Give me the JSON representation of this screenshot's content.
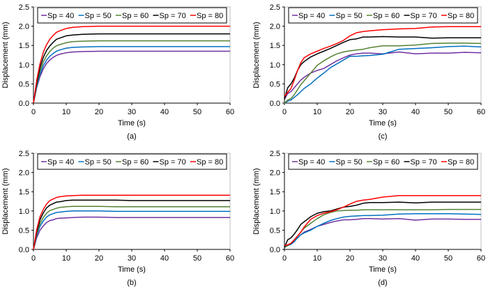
{
  "chart_data": [
    {
      "type": "line",
      "caption": "(a)",
      "xlabel": "Time (s)",
      "ylabel": "Displacement (mm)",
      "xlim": [
        0,
        60
      ],
      "ylim": [
        0,
        2.5
      ],
      "xticks": [
        0,
        10,
        20,
        30,
        40,
        50,
        60
      ],
      "yticks": [
        "0.0",
        "0.5",
        "1.0",
        "1.5",
        "2.0",
        "2.5"
      ],
      "grid": false,
      "legend_placement": "top",
      "x": [
        0,
        1,
        2,
        3,
        4,
        5,
        6,
        7,
        8,
        10,
        12,
        15,
        20,
        25,
        30,
        40,
        50,
        60
      ],
      "series": [
        {
          "name": "Sp = 40",
          "color": "#7030a0",
          "values": [
            0,
            0.41,
            0.69,
            0.89,
            1.03,
            1.12,
            1.19,
            1.24,
            1.27,
            1.31,
            1.33,
            1.34,
            1.35,
            1.35,
            1.35,
            1.35,
            1.35,
            1.35
          ]
        },
        {
          "name": "Sp = 50",
          "color": "#0070c0",
          "values": [
            0,
            0.44,
            0.75,
            0.97,
            1.12,
            1.22,
            1.29,
            1.35,
            1.38,
            1.43,
            1.45,
            1.46,
            1.47,
            1.47,
            1.47,
            1.47,
            1.47,
            1.47
          ]
        },
        {
          "name": "Sp = 60",
          "color": "#548235",
          "values": [
            0,
            0.49,
            0.83,
            1.07,
            1.23,
            1.34,
            1.43,
            1.49,
            1.52,
            1.57,
            1.6,
            1.61,
            1.62,
            1.62,
            1.62,
            1.62,
            1.62,
            1.62
          ]
        },
        {
          "name": "Sp = 70",
          "color": "#000000",
          "values": [
            0,
            0.54,
            0.92,
            1.19,
            1.37,
            1.49,
            1.58,
            1.66,
            1.69,
            1.75,
            1.77,
            1.79,
            1.8,
            1.8,
            1.8,
            1.8,
            1.8,
            1.8
          ]
        },
        {
          "name": "Sp = 80",
          "color": "#ff0000",
          "values": [
            0,
            0.6,
            1.02,
            1.32,
            1.52,
            1.66,
            1.76,
            1.84,
            1.88,
            1.94,
            1.97,
            1.99,
            2.0,
            2.0,
            2.0,
            2.0,
            2.0,
            2.0
          ]
        }
      ]
    },
    {
      "type": "line",
      "caption": "(b)",
      "xlabel": "Time (s)",
      "ylabel": "Displacement (mm)",
      "xlim": [
        0,
        60
      ],
      "ylim": [
        0,
        2.5
      ],
      "xticks": [
        0,
        10,
        20,
        30,
        40,
        50,
        60
      ],
      "yticks": [
        "0.0",
        "0.5",
        "1.0",
        "1.5",
        "2.0",
        "2.5"
      ],
      "grid": false,
      "legend_placement": "top",
      "x": [
        0,
        1,
        2,
        3,
        4,
        5,
        6,
        7,
        8,
        10,
        12,
        15,
        20,
        25,
        30,
        40,
        50,
        60
      ],
      "series": [
        {
          "name": "Sp = 40",
          "color": "#7030a0",
          "values": [
            0,
            0.31,
            0.5,
            0.61,
            0.7,
            0.75,
            0.77,
            0.8,
            0.81,
            0.82,
            0.83,
            0.84,
            0.84,
            0.83,
            0.83,
            0.83,
            0.83,
            0.83
          ]
        },
        {
          "name": "Sp = 50",
          "color": "#0070c0",
          "values": [
            0,
            0.37,
            0.6,
            0.74,
            0.84,
            0.9,
            0.93,
            0.96,
            0.97,
            0.99,
            1.0,
            1.0,
            1.0,
            0.99,
            0.99,
            0.99,
            0.99,
            0.99
          ]
        },
        {
          "name": "Sp = 60",
          "color": "#548235",
          "values": [
            0,
            0.41,
            0.67,
            0.83,
            0.94,
            1.01,
            1.04,
            1.07,
            1.09,
            1.11,
            1.12,
            1.12,
            1.12,
            1.11,
            1.11,
            1.11,
            1.11,
            1.11
          ]
        },
        {
          "name": "Sp = 70",
          "color": "#000000",
          "values": [
            0,
            0.47,
            0.77,
            0.95,
            1.08,
            1.15,
            1.19,
            1.23,
            1.24,
            1.27,
            1.28,
            1.28,
            1.28,
            1.28,
            1.27,
            1.27,
            1.27,
            1.27
          ]
        },
        {
          "name": "Sp = 80",
          "color": "#ff0000",
          "values": [
            0,
            0.52,
            0.85,
            1.04,
            1.18,
            1.27,
            1.31,
            1.35,
            1.37,
            1.39,
            1.4,
            1.41,
            1.41,
            1.41,
            1.41,
            1.41,
            1.41,
            1.41
          ]
        }
      ]
    },
    {
      "type": "line",
      "caption": "(c)",
      "xlabel": "Time (s)",
      "ylabel": "Displacement (mm)",
      "xlim": [
        0,
        60
      ],
      "ylim": [
        0,
        2.5
      ],
      "xticks": [
        0,
        10,
        20,
        30,
        40,
        50,
        60
      ],
      "yticks": [
        "0.0",
        "0.5",
        "1.0",
        "1.5",
        "2.0",
        "2.5"
      ],
      "grid": false,
      "legend_placement": "top",
      "x": [
        0,
        1,
        2,
        3,
        4,
        5,
        6,
        8,
        10,
        12,
        14,
        16,
        18,
        20,
        22,
        24,
        26,
        30,
        35,
        40,
        45,
        50,
        55,
        60
      ],
      "series": [
        {
          "name": "Sp = 40",
          "color": "#7030a0",
          "values": [
            0.1,
            0.25,
            0.3,
            0.4,
            0.5,
            0.6,
            0.67,
            0.78,
            0.85,
            0.9,
            1.0,
            1.1,
            1.18,
            1.25,
            1.28,
            1.3,
            1.3,
            1.28,
            1.33,
            1.28,
            1.3,
            1.3,
            1.32,
            1.31
          ]
        },
        {
          "name": "Sp = 50",
          "color": "#0070c0",
          "values": [
            0,
            0.05,
            0.08,
            0.15,
            0.22,
            0.3,
            0.38,
            0.5,
            0.65,
            0.78,
            0.92,
            1.02,
            1.12,
            1.22,
            1.22,
            1.23,
            1.24,
            1.27,
            1.4,
            1.42,
            1.44,
            1.47,
            1.48,
            1.46
          ]
        },
        {
          "name": "Sp = 60",
          "color": "#548235",
          "values": [
            0,
            0.08,
            0.12,
            0.22,
            0.35,
            0.48,
            0.58,
            0.78,
            0.98,
            1.1,
            1.2,
            1.28,
            1.33,
            1.36,
            1.38,
            1.4,
            1.44,
            1.49,
            1.49,
            1.51,
            1.55,
            1.56,
            1.56,
            1.55
          ]
        },
        {
          "name": "Sp = 70",
          "color": "#000000",
          "values": [
            0.1,
            0.4,
            0.5,
            0.65,
            0.85,
            1.0,
            1.08,
            1.2,
            1.28,
            1.35,
            1.42,
            1.5,
            1.58,
            1.65,
            1.67,
            1.72,
            1.72,
            1.73,
            1.72,
            1.72,
            1.69,
            1.7,
            1.7,
            1.7
          ]
        },
        {
          "name": "Sp = 80",
          "color": "#ff0000",
          "values": [
            0.18,
            0.28,
            0.38,
            0.6,
            0.85,
            1.05,
            1.18,
            1.28,
            1.35,
            1.42,
            1.48,
            1.55,
            1.63,
            1.75,
            1.83,
            1.86,
            1.88,
            1.91,
            1.93,
            1.94,
            1.98,
            1.99,
            1.99,
            1.99
          ]
        }
      ]
    },
    {
      "type": "line",
      "caption": "(d)",
      "xlabel": "Time (s)",
      "ylabel": "Displacement (mm)",
      "xlim": [
        0,
        60
      ],
      "ylim": [
        0,
        2.5
      ],
      "xticks": [
        0,
        10,
        20,
        30,
        40,
        50,
        60
      ],
      "yticks": [
        "0.0",
        "0.5",
        "1.0",
        "1.5",
        "2.0",
        "2.5"
      ],
      "grid": false,
      "legend_placement": "top",
      "x": [
        0,
        1,
        2,
        3,
        4,
        5,
        6,
        8,
        10,
        12,
        14,
        16,
        18,
        20,
        22,
        24,
        26,
        30,
        35,
        40,
        45,
        50,
        55,
        60
      ],
      "series": [
        {
          "name": "Sp = 40",
          "color": "#7030a0",
          "values": [
            0.05,
            0.1,
            0.15,
            0.22,
            0.3,
            0.38,
            0.45,
            0.52,
            0.6,
            0.65,
            0.7,
            0.74,
            0.77,
            0.77,
            0.78,
            0.8,
            0.8,
            0.79,
            0.8,
            0.76,
            0.79,
            0.79,
            0.78,
            0.78
          ]
        },
        {
          "name": "Sp = 50",
          "color": "#0070c0",
          "values": [
            0.05,
            0.1,
            0.13,
            0.2,
            0.3,
            0.38,
            0.43,
            0.5,
            0.6,
            0.68,
            0.75,
            0.8,
            0.84,
            0.86,
            0.87,
            0.88,
            0.88,
            0.89,
            0.92,
            0.93,
            0.93,
            0.93,
            0.92,
            0.91
          ]
        },
        {
          "name": "Sp = 60",
          "color": "#548235",
          "values": [
            0.05,
            0.1,
            0.16,
            0.24,
            0.34,
            0.45,
            0.55,
            0.68,
            0.8,
            0.9,
            0.96,
            1.0,
            1.01,
            1.02,
            1.02,
            1.03,
            1.03,
            1.03,
            1.03,
            1.03,
            1.03,
            1.04,
            1.04,
            1.04
          ]
        },
        {
          "name": "Sp = 70",
          "color": "#000000",
          "values": [
            0.05,
            0.25,
            0.3,
            0.4,
            0.52,
            0.65,
            0.72,
            0.85,
            0.94,
            0.98,
            1.0,
            1.05,
            1.1,
            1.12,
            1.15,
            1.2,
            1.22,
            1.22,
            1.23,
            1.21,
            1.23,
            1.23,
            1.23,
            1.23
          ]
        },
        {
          "name": "Sp = 80",
          "color": "#ff0000",
          "values": [
            0.1,
            0.12,
            0.16,
            0.25,
            0.35,
            0.45,
            0.58,
            0.78,
            0.88,
            0.94,
            0.98,
            1.03,
            1.1,
            1.18,
            1.25,
            1.28,
            1.3,
            1.36,
            1.4,
            1.4,
            1.4,
            1.4,
            1.4,
            1.4
          ]
        }
      ]
    }
  ]
}
